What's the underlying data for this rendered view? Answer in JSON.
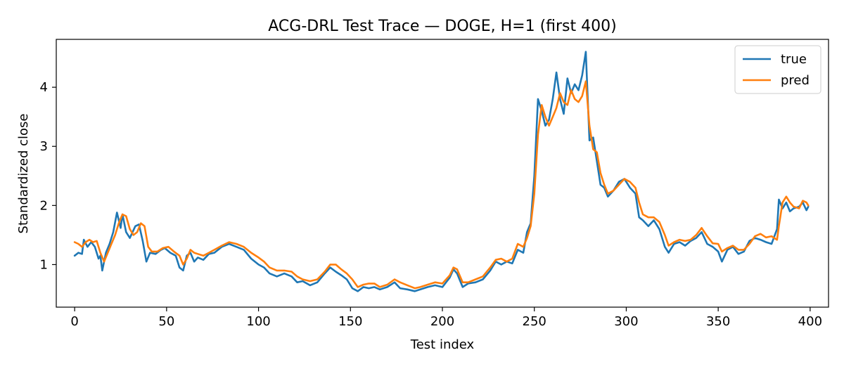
{
  "chart_data": {
    "type": "line",
    "title": "ACG-DRL Test Trace — DOGE, H=1 (first 400)",
    "xlabel": "Test index",
    "ylabel": "Standardized close",
    "xlim": [
      -10,
      410
    ],
    "ylim": [
      0.28,
      4.81
    ],
    "xticks": [
      0,
      50,
      100,
      150,
      200,
      250,
      300,
      350,
      400
    ],
    "yticks": [
      1,
      2,
      3,
      4
    ],
    "grid": false,
    "legend_position": "top-right",
    "series": [
      {
        "name": "true",
        "color": "#1f77b4",
        "points": [
          [
            0,
            1.15
          ],
          [
            2,
            1.2
          ],
          [
            4,
            1.18
          ],
          [
            5,
            1.42
          ],
          [
            7,
            1.3
          ],
          [
            9,
            1.38
          ],
          [
            11,
            1.3
          ],
          [
            13,
            1.1
          ],
          [
            14,
            1.15
          ],
          [
            15,
            0.9
          ],
          [
            17,
            1.2
          ],
          [
            19,
            1.35
          ],
          [
            21,
            1.55
          ],
          [
            23,
            1.88
          ],
          [
            25,
            1.62
          ],
          [
            26,
            1.85
          ],
          [
            28,
            1.55
          ],
          [
            30,
            1.45
          ],
          [
            33,
            1.65
          ],
          [
            35,
            1.68
          ],
          [
            37,
            1.4
          ],
          [
            39,
            1.05
          ],
          [
            41,
            1.2
          ],
          [
            44,
            1.18
          ],
          [
            47,
            1.25
          ],
          [
            49,
            1.28
          ],
          [
            52,
            1.2
          ],
          [
            55,
            1.15
          ],
          [
            57,
            0.95
          ],
          [
            59,
            0.9
          ],
          [
            61,
            1.15
          ],
          [
            63,
            1.2
          ],
          [
            65,
            1.05
          ],
          [
            67,
            1.12
          ],
          [
            70,
            1.08
          ],
          [
            73,
            1.18
          ],
          [
            76,
            1.2
          ],
          [
            80,
            1.3
          ],
          [
            84,
            1.35
          ],
          [
            88,
            1.3
          ],
          [
            92,
            1.25
          ],
          [
            96,
            1.1
          ],
          [
            100,
            1.0
          ],
          [
            103,
            0.95
          ],
          [
            106,
            0.85
          ],
          [
            110,
            0.8
          ],
          [
            114,
            0.85
          ],
          [
            118,
            0.8
          ],
          [
            121,
            0.7
          ],
          [
            124,
            0.72
          ],
          [
            128,
            0.65
          ],
          [
            132,
            0.7
          ],
          [
            136,
            0.85
          ],
          [
            139,
            0.95
          ],
          [
            142,
            0.88
          ],
          [
            145,
            0.82
          ],
          [
            148,
            0.75
          ],
          [
            151,
            0.6
          ],
          [
            154,
            0.55
          ],
          [
            157,
            0.62
          ],
          [
            160,
            0.6
          ],
          [
            163,
            0.62
          ],
          [
            166,
            0.58
          ],
          [
            170,
            0.62
          ],
          [
            174,
            0.7
          ],
          [
            177,
            0.6
          ],
          [
            181,
            0.58
          ],
          [
            185,
            0.55
          ],
          [
            188,
            0.58
          ],
          [
            192,
            0.62
          ],
          [
            196,
            0.65
          ],
          [
            200,
            0.62
          ],
          [
            204,
            0.78
          ],
          [
            206,
            0.92
          ],
          [
            208,
            0.85
          ],
          [
            211,
            0.62
          ],
          [
            214,
            0.68
          ],
          [
            218,
            0.7
          ],
          [
            222,
            0.75
          ],
          [
            226,
            0.9
          ],
          [
            229,
            1.05
          ],
          [
            232,
            1.0
          ],
          [
            235,
            1.05
          ],
          [
            238,
            1.02
          ],
          [
            241,
            1.25
          ],
          [
            244,
            1.2
          ],
          [
            246,
            1.55
          ],
          [
            248,
            1.7
          ],
          [
            250,
            2.5
          ],
          [
            252,
            3.8
          ],
          [
            254,
            3.6
          ],
          [
            256,
            3.35
          ],
          [
            258,
            3.45
          ],
          [
            260,
            3.8
          ],
          [
            262,
            4.25
          ],
          [
            264,
            3.8
          ],
          [
            266,
            3.55
          ],
          [
            268,
            4.15
          ],
          [
            270,
            3.9
          ],
          [
            272,
            4.05
          ],
          [
            274,
            3.95
          ],
          [
            276,
            4.2
          ],
          [
            278,
            4.6
          ],
          [
            280,
            3.1
          ],
          [
            282,
            3.15
          ],
          [
            284,
            2.75
          ],
          [
            286,
            2.35
          ],
          [
            288,
            2.3
          ],
          [
            290,
            2.15
          ],
          [
            293,
            2.25
          ],
          [
            296,
            2.4
          ],
          [
            299,
            2.45
          ],
          [
            302,
            2.3
          ],
          [
            305,
            2.2
          ],
          [
            307,
            1.8
          ],
          [
            309,
            1.75
          ],
          [
            312,
            1.65
          ],
          [
            315,
            1.75
          ],
          [
            318,
            1.6
          ],
          [
            321,
            1.3
          ],
          [
            323,
            1.2
          ],
          [
            326,
            1.35
          ],
          [
            329,
            1.38
          ],
          [
            332,
            1.32
          ],
          [
            335,
            1.4
          ],
          [
            338,
            1.45
          ],
          [
            341,
            1.55
          ],
          [
            344,
            1.35
          ],
          [
            347,
            1.3
          ],
          [
            350,
            1.22
          ],
          [
            352,
            1.05
          ],
          [
            355,
            1.25
          ],
          [
            358,
            1.3
          ],
          [
            361,
            1.18
          ],
          [
            364,
            1.22
          ],
          [
            367,
            1.4
          ],
          [
            370,
            1.45
          ],
          [
            373,
            1.42
          ],
          [
            376,
            1.38
          ],
          [
            379,
            1.35
          ],
          [
            382,
            1.6
          ],
          [
            383,
            2.1
          ],
          [
            385,
            1.95
          ],
          [
            387,
            2.05
          ],
          [
            389,
            1.9
          ],
          [
            391,
            1.95
          ],
          [
            394,
            1.98
          ],
          [
            396,
            2.05
          ],
          [
            398,
            1.92
          ],
          [
            399,
            1.98
          ]
        ]
      },
      {
        "name": "pred",
        "color": "#ff7f0e",
        "points": [
          [
            0,
            1.38
          ],
          [
            2,
            1.35
          ],
          [
            4,
            1.3
          ],
          [
            6,
            1.38
          ],
          [
            8,
            1.42
          ],
          [
            10,
            1.38
          ],
          [
            12,
            1.4
          ],
          [
            14,
            1.2
          ],
          [
            16,
            1.05
          ],
          [
            18,
            1.2
          ],
          [
            20,
            1.35
          ],
          [
            22,
            1.5
          ],
          [
            24,
            1.7
          ],
          [
            26,
            1.85
          ],
          [
            28,
            1.82
          ],
          [
            30,
            1.6
          ],
          [
            32,
            1.5
          ],
          [
            34,
            1.55
          ],
          [
            36,
            1.7
          ],
          [
            38,
            1.65
          ],
          [
            40,
            1.3
          ],
          [
            42,
            1.22
          ],
          [
            45,
            1.22
          ],
          [
            48,
            1.28
          ],
          [
            51,
            1.3
          ],
          [
            54,
            1.22
          ],
          [
            57,
            1.15
          ],
          [
            59,
            1.0
          ],
          [
            61,
            1.1
          ],
          [
            63,
            1.25
          ],
          [
            65,
            1.2
          ],
          [
            67,
            1.18
          ],
          [
            70,
            1.15
          ],
          [
            73,
            1.2
          ],
          [
            76,
            1.25
          ],
          [
            80,
            1.32
          ],
          [
            84,
            1.38
          ],
          [
            88,
            1.35
          ],
          [
            92,
            1.3
          ],
          [
            96,
            1.2
          ],
          [
            100,
            1.12
          ],
          [
            103,
            1.05
          ],
          [
            106,
            0.95
          ],
          [
            110,
            0.9
          ],
          [
            114,
            0.9
          ],
          [
            118,
            0.88
          ],
          [
            121,
            0.8
          ],
          [
            124,
            0.75
          ],
          [
            128,
            0.72
          ],
          [
            132,
            0.75
          ],
          [
            136,
            0.88
          ],
          [
            139,
            1.0
          ],
          [
            142,
            1.0
          ],
          [
            145,
            0.92
          ],
          [
            148,
            0.85
          ],
          [
            151,
            0.75
          ],
          [
            154,
            0.62
          ],
          [
            157,
            0.66
          ],
          [
            160,
            0.68
          ],
          [
            163,
            0.68
          ],
          [
            166,
            0.62
          ],
          [
            170,
            0.66
          ],
          [
            174,
            0.75
          ],
          [
            177,
            0.7
          ],
          [
            181,
            0.65
          ],
          [
            185,
            0.6
          ],
          [
            188,
            0.62
          ],
          [
            192,
            0.66
          ],
          [
            196,
            0.7
          ],
          [
            200,
            0.68
          ],
          [
            204,
            0.82
          ],
          [
            206,
            0.95
          ],
          [
            208,
            0.92
          ],
          [
            211,
            0.7
          ],
          [
            214,
            0.7
          ],
          [
            218,
            0.75
          ],
          [
            222,
            0.8
          ],
          [
            226,
            0.95
          ],
          [
            229,
            1.08
          ],
          [
            232,
            1.1
          ],
          [
            235,
            1.05
          ],
          [
            238,
            1.1
          ],
          [
            241,
            1.35
          ],
          [
            244,
            1.3
          ],
          [
            246,
            1.45
          ],
          [
            248,
            1.65
          ],
          [
            250,
            2.2
          ],
          [
            252,
            3.2
          ],
          [
            254,
            3.7
          ],
          [
            256,
            3.5
          ],
          [
            258,
            3.35
          ],
          [
            260,
            3.5
          ],
          [
            262,
            3.65
          ],
          [
            264,
            3.9
          ],
          [
            266,
            3.75
          ],
          [
            268,
            3.7
          ],
          [
            270,
            3.95
          ],
          [
            272,
            3.8
          ],
          [
            274,
            3.75
          ],
          [
            276,
            3.85
          ],
          [
            278,
            4.1
          ],
          [
            280,
            3.35
          ],
          [
            282,
            2.95
          ],
          [
            284,
            2.9
          ],
          [
            286,
            2.55
          ],
          [
            288,
            2.35
          ],
          [
            290,
            2.2
          ],
          [
            293,
            2.25
          ],
          [
            296,
            2.35
          ],
          [
            299,
            2.45
          ],
          [
            302,
            2.4
          ],
          [
            305,
            2.3
          ],
          [
            307,
            2.05
          ],
          [
            309,
            1.85
          ],
          [
            312,
            1.8
          ],
          [
            315,
            1.8
          ],
          [
            318,
            1.72
          ],
          [
            321,
            1.5
          ],
          [
            323,
            1.32
          ],
          [
            326,
            1.38
          ],
          [
            329,
            1.42
          ],
          [
            332,
            1.4
          ],
          [
            335,
            1.42
          ],
          [
            338,
            1.5
          ],
          [
            341,
            1.62
          ],
          [
            344,
            1.48
          ],
          [
            347,
            1.36
          ],
          [
            350,
            1.35
          ],
          [
            352,
            1.22
          ],
          [
            355,
            1.28
          ],
          [
            358,
            1.32
          ],
          [
            361,
            1.25
          ],
          [
            364,
            1.25
          ],
          [
            367,
            1.35
          ],
          [
            370,
            1.48
          ],
          [
            373,
            1.52
          ],
          [
            376,
            1.46
          ],
          [
            379,
            1.48
          ],
          [
            382,
            1.42
          ],
          [
            383,
            1.65
          ],
          [
            385,
            2.05
          ],
          [
            387,
            2.15
          ],
          [
            389,
            2.05
          ],
          [
            391,
            1.98
          ],
          [
            394,
            1.95
          ],
          [
            396,
            2.08
          ],
          [
            398,
            2.05
          ],
          [
            399,
            2.0
          ]
        ]
      }
    ]
  }
}
